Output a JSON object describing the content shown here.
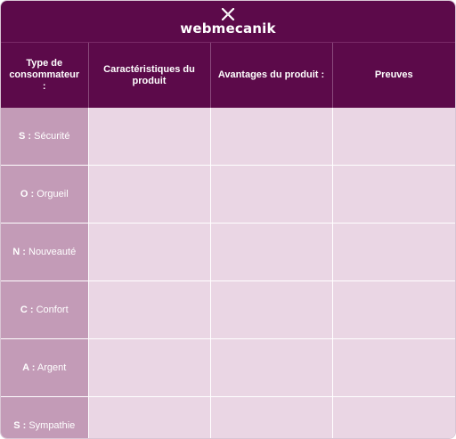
{
  "brand": {
    "name": "webmecanik",
    "logo_icon": "webmecanik-x-logo-icon",
    "colors": {
      "primary": "#5c0a4a",
      "cell": "#ead6e4",
      "type_cell": "#c39bb7"
    }
  },
  "table": {
    "headers": [
      "Type de consommateur :",
      "Caractéristiques du produit",
      "Avantages du produit :",
      "Preuves"
    ],
    "rows": [
      {
        "letter": "S :",
        "label": "Sécurité"
      },
      {
        "letter": "O :",
        "label": "Orgueil"
      },
      {
        "letter": "N :",
        "label": "Nouveauté"
      },
      {
        "letter": "C :",
        "label": "Confort"
      },
      {
        "letter": "A :",
        "label": "Argent"
      },
      {
        "letter": "S :",
        "label": "Sympathie"
      }
    ]
  }
}
